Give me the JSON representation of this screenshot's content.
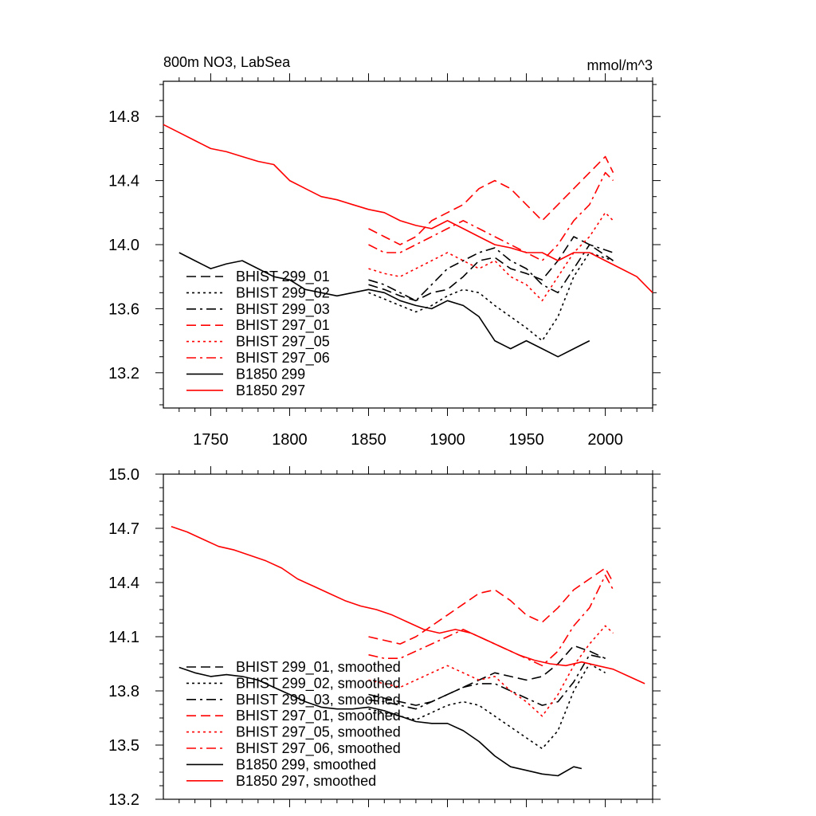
{
  "chart_data": [
    {
      "type": "line",
      "title_left": "800m NO3, LabSea",
      "title_right": "mmol/m^3",
      "xlim": [
        1720,
        2030
      ],
      "ylim": [
        12.98,
        15.02
      ],
      "xticks": [
        1750,
        1800,
        1850,
        1900,
        1950,
        2000
      ],
      "yticks": [
        13.2,
        13.6,
        14.0,
        14.4,
        14.8
      ],
      "ytick_labels": [
        "13.2",
        "13.6",
        "14.0",
        "14.4",
        "14.8"
      ],
      "legend_position": "lower-left",
      "grid": false,
      "series": [
        {
          "name": "BHIST 299_01",
          "color": "#000000",
          "dash": "longdash",
          "x": [
            1850,
            1860,
            1870,
            1880,
            1890,
            1900,
            1910,
            1920,
            1930,
            1940,
            1950,
            1960,
            1970,
            1980,
            1990,
            2005
          ],
          "y": [
            13.75,
            13.72,
            13.68,
            13.65,
            13.7,
            13.72,
            13.8,
            13.9,
            13.92,
            13.85,
            13.82,
            13.78,
            13.9,
            14.05,
            14.0,
            13.9
          ]
        },
        {
          "name": "BHIST 299_02",
          "color": "#000000",
          "dash": "dotted",
          "x": [
            1850,
            1860,
            1870,
            1880,
            1890,
            1900,
            1910,
            1920,
            1930,
            1940,
            1950,
            1960,
            1970,
            1980,
            1990,
            2005
          ],
          "y": [
            13.7,
            13.66,
            13.62,
            13.58,
            13.62,
            13.68,
            13.72,
            13.7,
            13.62,
            13.55,
            13.48,
            13.4,
            13.55,
            13.8,
            13.95,
            13.9
          ]
        },
        {
          "name": "BHIST 299_03",
          "color": "#000000",
          "dash": "dashdot",
          "x": [
            1850,
            1860,
            1870,
            1880,
            1890,
            1900,
            1910,
            1920,
            1930,
            1940,
            1950,
            1960,
            1970,
            1980,
            1990,
            2005
          ],
          "y": [
            13.78,
            13.75,
            13.7,
            13.65,
            13.75,
            13.85,
            13.9,
            13.95,
            13.98,
            13.9,
            13.85,
            13.75,
            13.7,
            13.85,
            14.0,
            13.95
          ]
        },
        {
          "name": "BHIST 297_01",
          "color": "#ff0000",
          "dash": "longdash",
          "x": [
            1850,
            1860,
            1870,
            1880,
            1890,
            1900,
            1910,
            1920,
            1930,
            1940,
            1950,
            1960,
            1970,
            1980,
            1990,
            2000,
            2005
          ],
          "y": [
            14.1,
            14.05,
            14.0,
            14.05,
            14.15,
            14.2,
            14.25,
            14.35,
            14.4,
            14.35,
            14.25,
            14.15,
            14.25,
            14.35,
            14.45,
            14.55,
            14.45
          ]
        },
        {
          "name": "BHIST 297_05",
          "color": "#ff0000",
          "dash": "dotted",
          "x": [
            1850,
            1860,
            1870,
            1880,
            1890,
            1900,
            1910,
            1920,
            1930,
            1940,
            1950,
            1960,
            1970,
            1980,
            1990,
            2000,
            2005
          ],
          "y": [
            13.85,
            13.82,
            13.8,
            13.85,
            13.9,
            13.95,
            13.9,
            13.85,
            13.9,
            13.8,
            13.75,
            13.65,
            13.8,
            13.95,
            14.05,
            14.2,
            14.15
          ]
        },
        {
          "name": "BHIST 297_06",
          "color": "#ff0000",
          "dash": "dashdot",
          "x": [
            1850,
            1860,
            1870,
            1880,
            1890,
            1900,
            1910,
            1920,
            1930,
            1940,
            1950,
            1960,
            1970,
            1980,
            1990,
            2000,
            2005
          ],
          "y": [
            14.0,
            13.95,
            13.95,
            14.0,
            14.05,
            14.1,
            14.15,
            14.1,
            14.05,
            14.0,
            13.95,
            13.9,
            14.0,
            14.15,
            14.25,
            14.45,
            14.4
          ]
        },
        {
          "name": "B1850 299",
          "color": "#000000",
          "dash": "solid",
          "x": [
            1730,
            1740,
            1750,
            1760,
            1770,
            1780,
            1790,
            1800,
            1810,
            1820,
            1830,
            1840,
            1850,
            1860,
            1870,
            1880,
            1890,
            1900,
            1910,
            1920,
            1930,
            1940,
            1950,
            1960,
            1970,
            1980,
            1990
          ],
          "y": [
            13.95,
            13.9,
            13.85,
            13.88,
            13.9,
            13.85,
            13.8,
            13.78,
            13.72,
            13.7,
            13.68,
            13.7,
            13.72,
            13.7,
            13.65,
            13.62,
            13.6,
            13.65,
            13.62,
            13.55,
            13.4,
            13.35,
            13.4,
            13.35,
            13.3,
            13.35,
            13.4
          ]
        },
        {
          "name": "B1850 297",
          "color": "#ff0000",
          "dash": "solid",
          "x": [
            1720,
            1730,
            1740,
            1750,
            1760,
            1770,
            1780,
            1790,
            1800,
            1810,
            1820,
            1830,
            1840,
            1850,
            1860,
            1870,
            1880,
            1890,
            1900,
            1910,
            1920,
            1930,
            1940,
            1950,
            1960,
            1970,
            1980,
            1990,
            2000,
            2010,
            2020,
            2030
          ],
          "y": [
            14.75,
            14.7,
            14.65,
            14.6,
            14.58,
            14.55,
            14.52,
            14.5,
            14.4,
            14.35,
            14.3,
            14.28,
            14.25,
            14.22,
            14.2,
            14.15,
            14.12,
            14.1,
            14.15,
            14.1,
            14.05,
            14.0,
            13.98,
            13.95,
            13.95,
            13.9,
            13.95,
            13.95,
            13.9,
            13.85,
            13.8,
            13.7
          ]
        }
      ]
    },
    {
      "type": "line",
      "xlim": [
        1720,
        2030
      ],
      "ylim": [
        13.2,
        15.0
      ],
      "xticks": [
        1750,
        1800,
        1850,
        1900,
        1950,
        2000
      ],
      "yticks": [
        13.2,
        13.5,
        13.8,
        14.1,
        14.4,
        14.7,
        15.0
      ],
      "ytick_labels": [
        "13.2",
        "13.5",
        "13.8",
        "14.1",
        "14.4",
        "14.7",
        "15.0"
      ],
      "legend_position": "lower-left",
      "grid": false,
      "series": [
        {
          "name": "BHIST 299_01, smoothed",
          "color": "#000000",
          "dash": "longdash",
          "x": [
            1850,
            1860,
            1870,
            1880,
            1890,
            1900,
            1910,
            1920,
            1930,
            1940,
            1950,
            1960,
            1970,
            1980,
            1990,
            2000
          ],
          "y": [
            13.78,
            13.76,
            13.74,
            13.72,
            13.74,
            13.78,
            13.82,
            13.86,
            13.9,
            13.88,
            13.86,
            13.88,
            13.95,
            14.05,
            14.02,
            13.98
          ]
        },
        {
          "name": "BHIST 299_02, smoothed",
          "color": "#000000",
          "dash": "dotted",
          "x": [
            1850,
            1860,
            1870,
            1880,
            1890,
            1900,
            1910,
            1920,
            1930,
            1940,
            1950,
            1960,
            1970,
            1980,
            1990,
            2000
          ],
          "y": [
            13.7,
            13.68,
            13.66,
            13.64,
            13.68,
            13.72,
            13.74,
            13.72,
            13.66,
            13.6,
            13.54,
            13.48,
            13.58,
            13.8,
            13.95,
            13.9
          ]
        },
        {
          "name": "BHIST 299_03, smoothed",
          "color": "#000000",
          "dash": "dashdot",
          "x": [
            1850,
            1860,
            1870,
            1880,
            1890,
            1900,
            1910,
            1920,
            1930,
            1940,
            1950,
            1960,
            1970,
            1980,
            1990,
            2000
          ],
          "y": [
            13.75,
            13.74,
            13.72,
            13.7,
            13.74,
            13.78,
            13.82,
            13.84,
            13.84,
            13.8,
            13.76,
            13.72,
            13.74,
            13.85,
            14.0,
            13.98
          ]
        },
        {
          "name": "BHIST 297_01, smoothed",
          "color": "#ff0000",
          "dash": "longdash",
          "x": [
            1850,
            1860,
            1870,
            1880,
            1890,
            1900,
            1910,
            1920,
            1930,
            1940,
            1950,
            1960,
            1970,
            1980,
            1990,
            2000,
            2005
          ],
          "y": [
            14.1,
            14.08,
            14.06,
            14.1,
            14.16,
            14.22,
            14.28,
            14.34,
            14.36,
            14.3,
            14.22,
            14.18,
            14.26,
            14.36,
            14.42,
            14.48,
            14.4
          ]
        },
        {
          "name": "BHIST 297_05, smoothed",
          "color": "#ff0000",
          "dash": "dotted",
          "x": [
            1850,
            1860,
            1870,
            1880,
            1890,
            1900,
            1910,
            1920,
            1930,
            1940,
            1950,
            1960,
            1970,
            1980,
            1990,
            2000,
            2005
          ],
          "y": [
            13.86,
            13.84,
            13.82,
            13.86,
            13.9,
            13.94,
            13.9,
            13.86,
            13.88,
            13.8,
            13.74,
            13.66,
            13.78,
            13.94,
            14.06,
            14.16,
            14.12
          ]
        },
        {
          "name": "BHIST 297_06, smoothed",
          "color": "#ff0000",
          "dash": "dashdot",
          "x": [
            1850,
            1860,
            1870,
            1880,
            1890,
            1900,
            1910,
            1920,
            1930,
            1940,
            1950,
            1960,
            1970,
            1980,
            1990,
            2000,
            2005
          ],
          "y": [
            14.0,
            13.98,
            13.98,
            14.02,
            14.06,
            14.1,
            14.14,
            14.1,
            14.06,
            14.02,
            13.98,
            13.94,
            14.02,
            14.16,
            14.26,
            14.44,
            14.36
          ]
        },
        {
          "name": "B1850 299, smoothed",
          "color": "#000000",
          "dash": "solid",
          "x": [
            1730,
            1740,
            1750,
            1760,
            1770,
            1780,
            1790,
            1800,
            1810,
            1820,
            1830,
            1840,
            1850,
            1860,
            1870,
            1880,
            1890,
            1900,
            1910,
            1920,
            1930,
            1940,
            1950,
            1960,
            1970,
            1980,
            1985
          ],
          "y": [
            13.93,
            13.9,
            13.88,
            13.89,
            13.88,
            13.86,
            13.82,
            13.78,
            13.74,
            13.71,
            13.7,
            13.7,
            13.71,
            13.69,
            13.66,
            13.63,
            13.62,
            13.62,
            13.58,
            13.52,
            13.44,
            13.38,
            13.36,
            13.34,
            13.33,
            13.38,
            13.37
          ]
        },
        {
          "name": "B1850 297, smoothed",
          "color": "#ff0000",
          "dash": "solid",
          "x": [
            1725,
            1735,
            1745,
            1755,
            1765,
            1775,
            1785,
            1795,
            1805,
            1815,
            1825,
            1835,
            1845,
            1855,
            1865,
            1875,
            1885,
            1895,
            1905,
            1915,
            1925,
            1935,
            1945,
            1955,
            1965,
            1975,
            1985,
            1995,
            2005,
            2015,
            2025
          ],
          "y": [
            14.71,
            14.68,
            14.64,
            14.6,
            14.58,
            14.55,
            14.52,
            14.48,
            14.42,
            14.38,
            14.34,
            14.3,
            14.27,
            14.25,
            14.22,
            14.18,
            14.14,
            14.12,
            14.14,
            14.12,
            14.08,
            14.04,
            14.0,
            13.97,
            13.95,
            13.94,
            13.96,
            13.94,
            13.92,
            13.88,
            13.84
          ]
        }
      ]
    }
  ]
}
